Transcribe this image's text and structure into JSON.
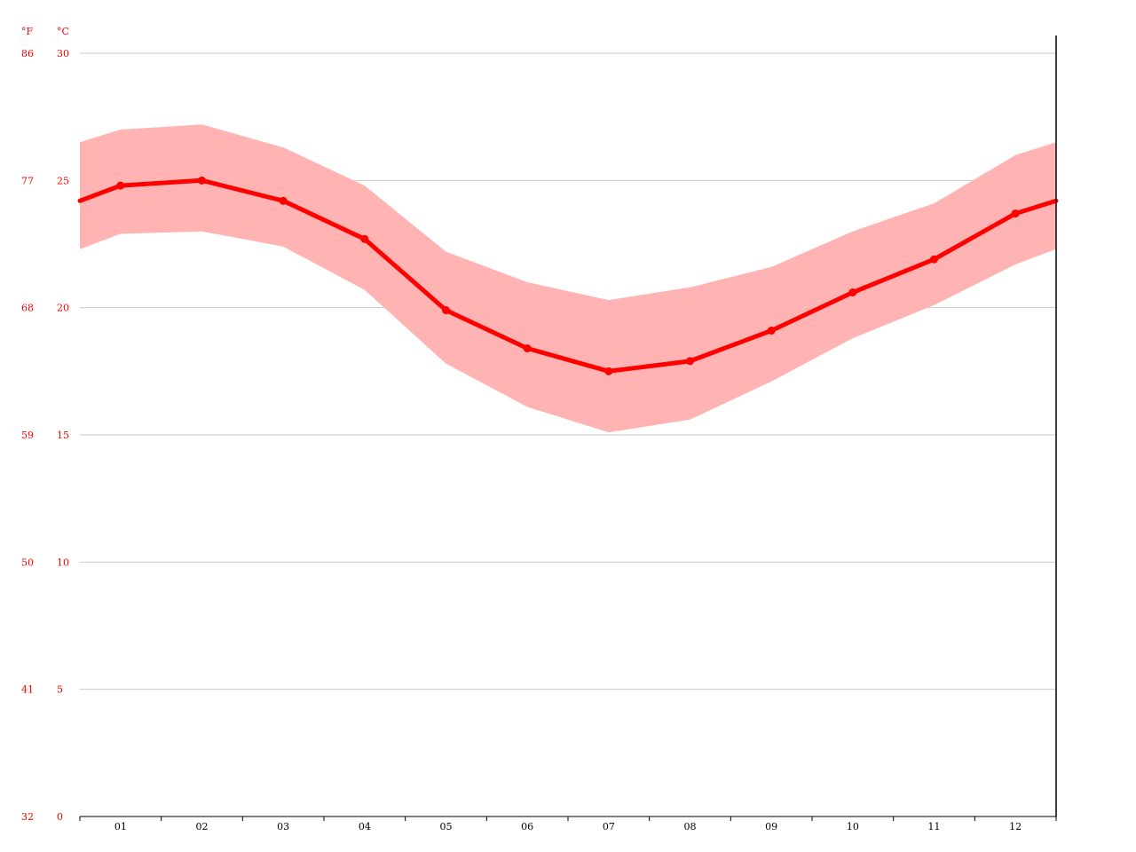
{
  "chart_data": {
    "type": "line",
    "title": "",
    "y_units": {
      "left": "°F",
      "right": "°C"
    },
    "categories": [
      "01",
      "02",
      "03",
      "04",
      "05",
      "06",
      "07",
      "08",
      "09",
      "10",
      "11",
      "12"
    ],
    "y_ticks_c": [
      "0",
      "5",
      "10",
      "15",
      "20",
      "25",
      "30"
    ],
    "y_ticks_f": [
      "32",
      "41",
      "50",
      "59",
      "68",
      "77",
      "86"
    ],
    "ylim": [
      0,
      30
    ],
    "grid": true,
    "series": [
      {
        "values": [
          24.8,
          25.0,
          24.2,
          22.7,
          19.9,
          18.4,
          17.5,
          17.9,
          19.1,
          20.6,
          21.9,
          23.7
        ]
      }
    ],
    "band": {
      "lower": [
        22.9,
        23.0,
        22.4,
        20.7,
        17.8,
        16.1,
        15.1,
        15.6,
        17.1,
        18.8,
        20.1,
        21.7
      ],
      "upper": [
        27.0,
        27.2,
        26.3,
        24.8,
        22.2,
        21.0,
        20.3,
        20.8,
        21.6,
        23.0,
        24.1,
        26.0
      ]
    },
    "edge_values": {
      "start_mean": 24.2,
      "end_mean": 24.2,
      "start_upper": 26.5,
      "end_upper": 26.5,
      "start_lower": 22.3,
      "end_lower": 22.3
    }
  },
  "colors": {
    "line": "#ff0000",
    "band": "#ffb3b3",
    "grid": "#c8c8c8",
    "axis": "#000000",
    "ylabel": "#ff0000"
  }
}
